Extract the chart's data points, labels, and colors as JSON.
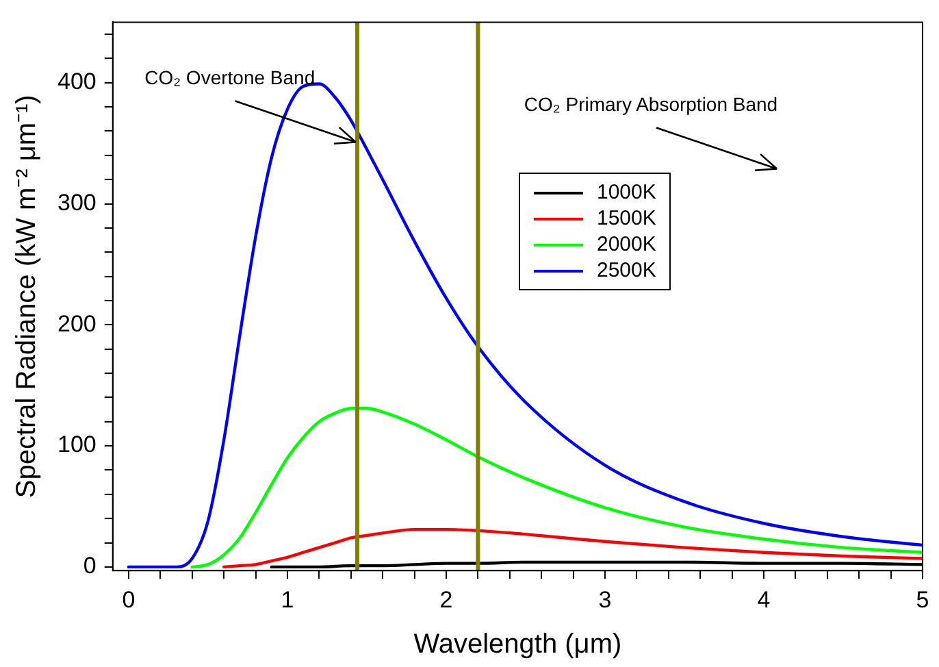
{
  "chart_data": {
    "type": "line",
    "xlabel": "Wavelength (μm)",
    "ylabel": "Spectral Radiance (kW m⁻² μm⁻¹)",
    "series": [
      {
        "name": "1000K",
        "color": "#000000",
        "x": [
          0.9,
          1.0,
          1.2,
          1.4,
          1.6,
          1.8,
          2.0,
          2.2,
          2.5,
          3.0,
          3.5,
          4.0,
          4.5,
          5.0
        ],
        "values": [
          0,
          0,
          0,
          1,
          1,
          2,
          3,
          3,
          4,
          4,
          4,
          3,
          3,
          2
        ]
      },
      {
        "name": "1500K",
        "color": "#ff0000",
        "x": [
          0.6,
          0.7,
          0.8,
          0.9,
          1.0,
          1.1,
          1.2,
          1.3,
          1.4,
          1.5,
          1.6,
          1.8,
          2.0,
          2.2,
          2.5,
          3.0,
          3.5,
          4.0,
          4.5,
          5.0
        ],
        "values": [
          0,
          1,
          2,
          5,
          8,
          12,
          16,
          20,
          24,
          26,
          28,
          31,
          31,
          30,
          27,
          21,
          16,
          12,
          9,
          7
        ]
      },
      {
        "name": "2000K",
        "color": "#00ff00",
        "x": [
          0.4,
          0.5,
          0.6,
          0.7,
          0.8,
          0.9,
          1.0,
          1.1,
          1.2,
          1.3,
          1.4,
          1.5,
          1.6,
          1.8,
          2.0,
          2.2,
          2.5,
          3.0,
          3.5,
          4.0,
          4.5,
          5.0
        ],
        "values": [
          0,
          2,
          10,
          24,
          45,
          68,
          90,
          107,
          120,
          127,
          131,
          131,
          128,
          118,
          105,
          91,
          73,
          49,
          33,
          23,
          16,
          12
        ]
      },
      {
        "name": "2500K",
        "color": "#0000ff",
        "x": [
          0,
          0.2,
          0.3,
          0.4,
          0.5,
          0.6,
          0.7,
          0.8,
          0.9,
          1.0,
          1.1,
          1.2,
          1.3,
          1.4,
          1.5,
          1.6,
          1.8,
          2.0,
          2.2,
          2.5,
          3.0,
          3.5,
          4.0,
          4.5,
          5.0
        ],
        "values": [
          0,
          0,
          0,
          7,
          38,
          105,
          191,
          273,
          338,
          378,
          397,
          399,
          388,
          369,
          345,
          320,
          269,
          222,
          182,
          136,
          84,
          54,
          36,
          25,
          18
        ]
      }
    ],
    "xlim": [
      -0.1,
      5
    ],
    "xticks": [
      0,
      {
        "value": 0.2,
        "label": null
      },
      {
        "value": 0.4,
        "label": null
      },
      {
        "value": 0.6,
        "label": null
      },
      {
        "value": 0.8,
        "label": null
      },
      1,
      {
        "value": 1.2,
        "label": null
      },
      {
        "value": 1.4,
        "label": null
      },
      {
        "value": 1.6,
        "label": null
      },
      {
        "value": 1.8,
        "label": null
      },
      2,
      {
        "value": 2.2,
        "label": null
      },
      {
        "value": 2.4,
        "label": null
      },
      {
        "value": 2.6,
        "label": null
      },
      {
        "value": 2.8,
        "label": null
      },
      3,
      {
        "value": 3.2,
        "label": null
      },
      {
        "value": 3.4,
        "label": null
      },
      {
        "value": 3.6,
        "label": null
      },
      {
        "value": 3.8,
        "label": null
      },
      4,
      {
        "value": 4.2,
        "label": null
      },
      {
        "value": 4.4,
        "label": null
      },
      {
        "value": 4.6,
        "label": null
      },
      {
        "value": 4.8,
        "label": null
      },
      5
    ],
    "ylim": [
      -3,
      450
    ],
    "yticks": [
      0,
      {
        "value": 20,
        "label": null
      },
      {
        "value": 40,
        "label": null
      },
      {
        "value": 60,
        "label": null
      },
      {
        "value": 80,
        "label": null
      },
      100,
      {
        "value": 120,
        "label": null
      },
      {
        "value": 140,
        "label": null
      },
      {
        "value": 160,
        "label": null
      },
      {
        "value": 180,
        "label": null
      },
      200,
      {
        "value": 220,
        "label": null
      },
      {
        "value": 240,
        "label": null
      },
      {
        "value": 260,
        "label": null
      },
      {
        "value": 280,
        "label": null
      },
      300,
      {
        "value": 320,
        "label": null
      },
      {
        "value": 340,
        "label": null
      },
      {
        "value": 360,
        "label": null
      },
      {
        "value": 380,
        "label": null
      },
      400,
      {
        "value": 420,
        "label": null
      },
      {
        "value": 440,
        "label": null
      }
    ],
    "ref_lines": [
      {
        "axis": "x",
        "value": 1.44,
        "color": "#808000"
      },
      {
        "axis": "x",
        "value": 2.2,
        "color": "#808000"
      }
    ],
    "annotations": [
      {
        "text": "CO₂ Overtone Band",
        "x": 1.43,
        "y": 351
      },
      "CO₂ Primary Absorption Band"
    ],
    "grid": false,
    "legend": "top right",
    "marker": "none",
    "line_style": "solid"
  }
}
